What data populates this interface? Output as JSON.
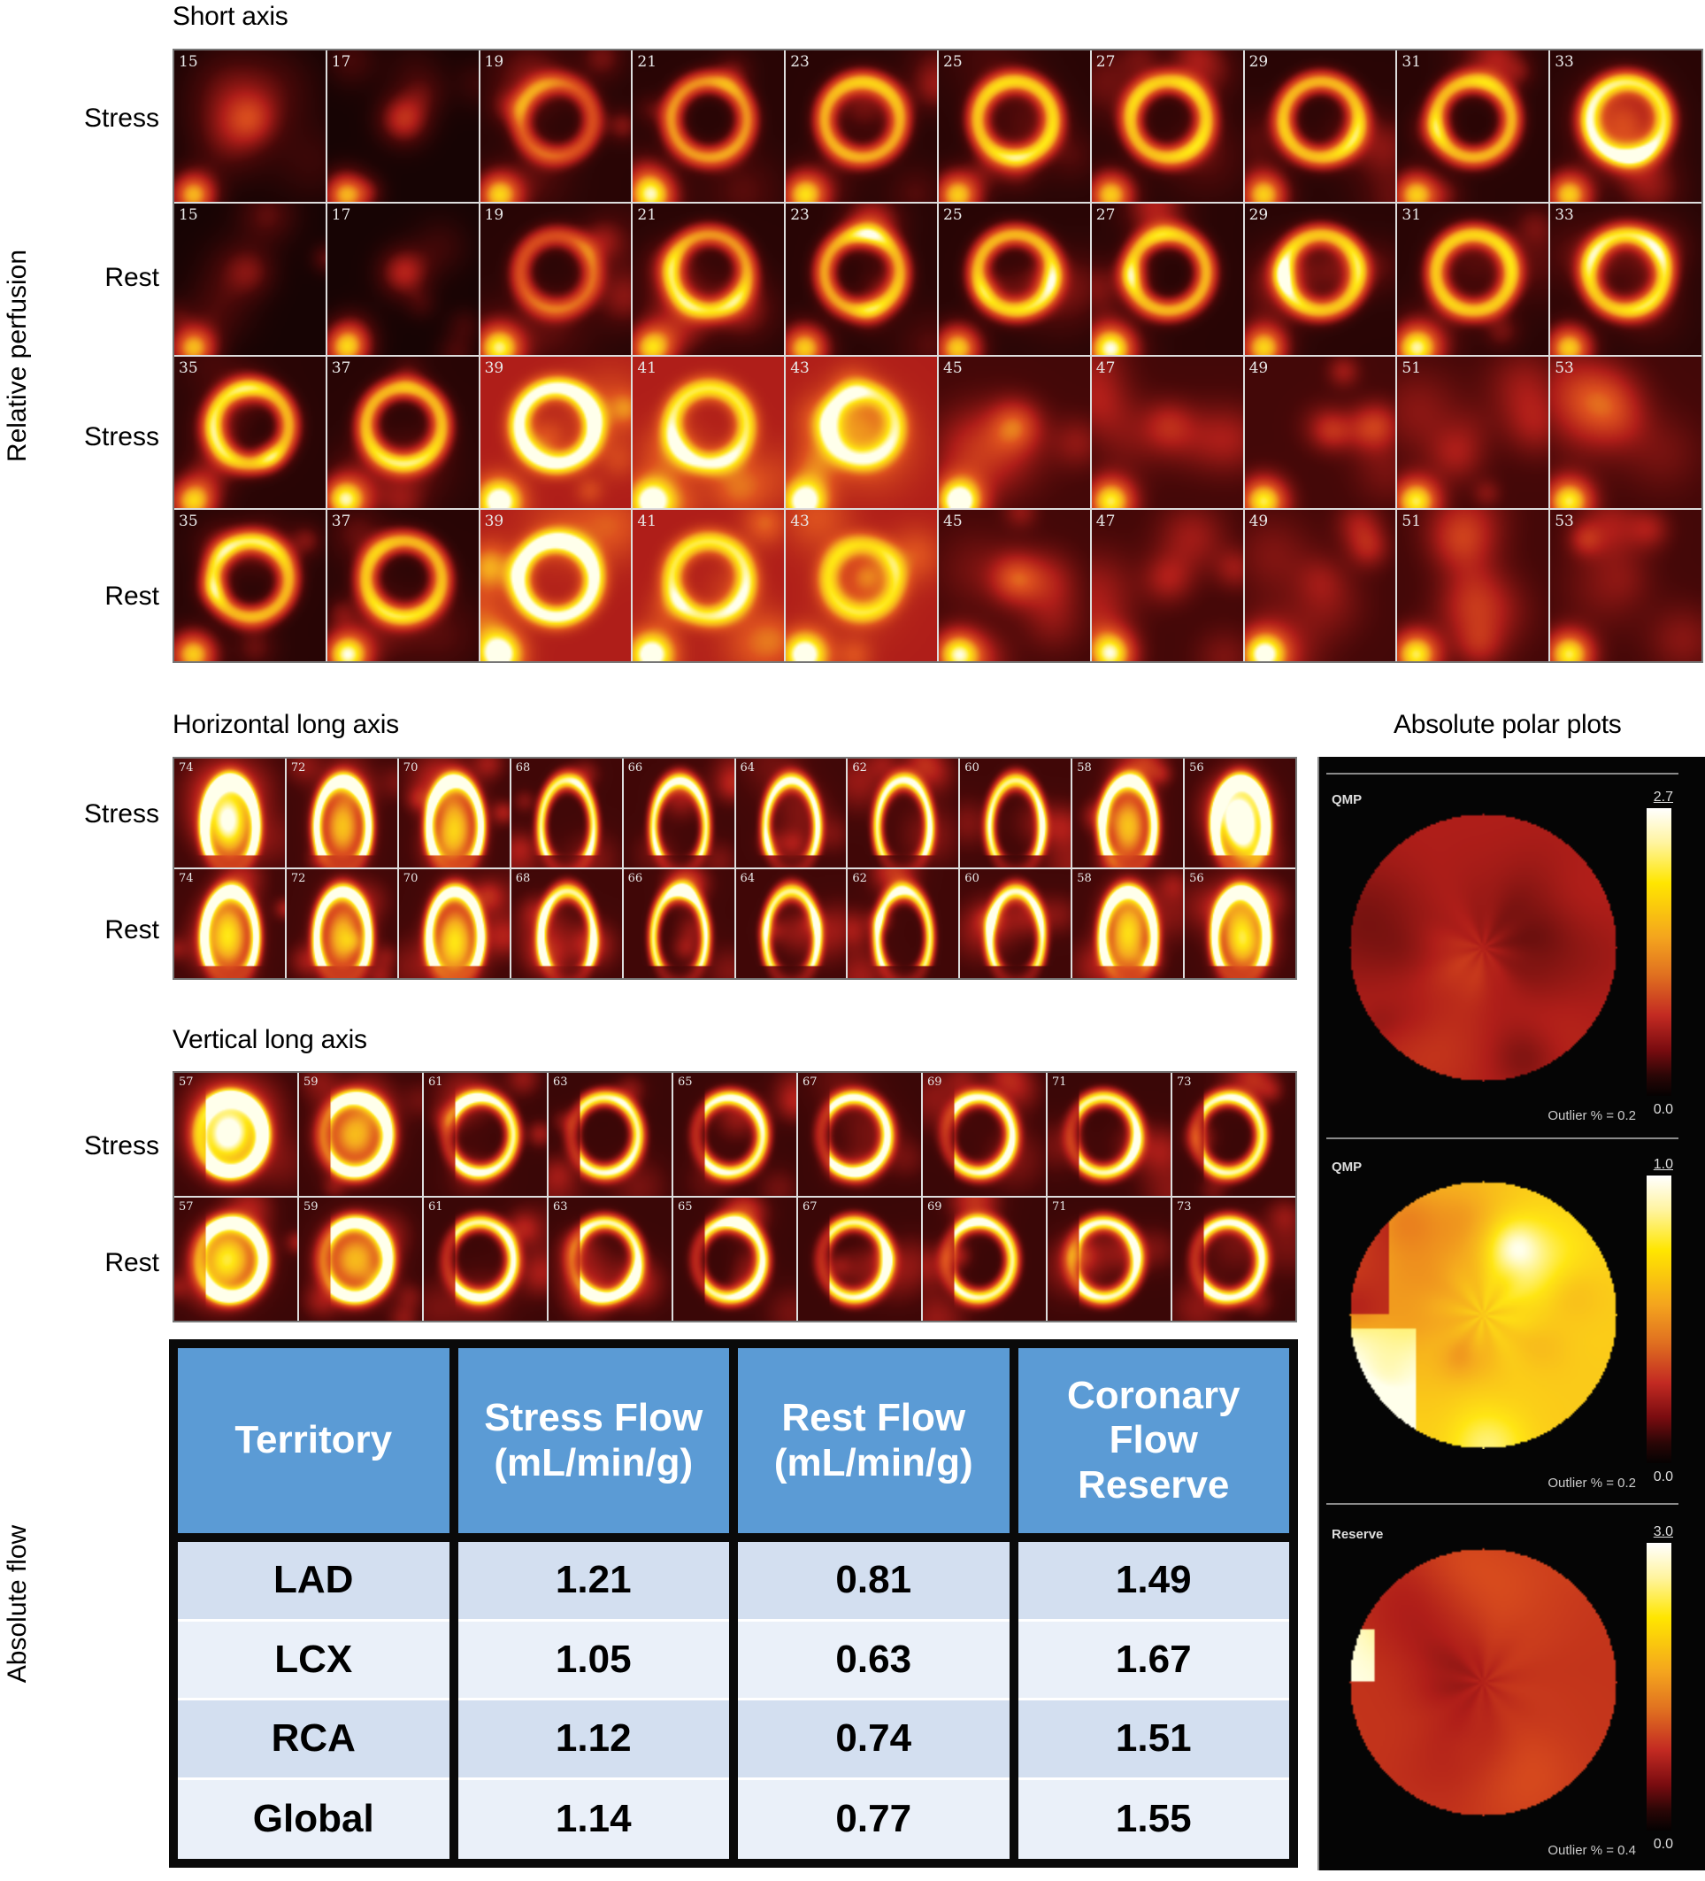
{
  "short_axis": {
    "title": "Short axis",
    "side_label": "Relative perfusion",
    "rows": [
      {
        "label": "Stress",
        "slices": [
          "15",
          "17",
          "19",
          "21",
          "23",
          "25",
          "27",
          "29",
          "31",
          "33"
        ],
        "intensity": [
          0.25,
          0.45,
          0.7,
          0.9,
          0.95,
          1,
          1,
          1,
          1,
          1
        ]
      },
      {
        "label": "Rest",
        "slices": [
          "15",
          "17",
          "19",
          "21",
          "23",
          "25",
          "27",
          "29",
          "31",
          "33"
        ],
        "intensity": [
          0.2,
          0.4,
          0.7,
          0.9,
          0.95,
          1,
          1,
          1,
          1,
          1
        ]
      },
      {
        "label": "Stress",
        "slices": [
          "35",
          "37",
          "39",
          "41",
          "43",
          "45",
          "47",
          "49",
          "51",
          "53"
        ],
        "intensity": [
          1,
          1,
          0.95,
          0.75,
          0.6,
          0.35,
          0.2,
          0.1,
          0.05,
          0.05
        ]
      },
      {
        "label": "Rest",
        "slices": [
          "35",
          "37",
          "39",
          "41",
          "43",
          "45",
          "47",
          "49",
          "51",
          "53"
        ],
        "intensity": [
          1,
          1,
          0.95,
          0.75,
          0.6,
          0.35,
          0.2,
          0.1,
          0.05,
          0.05
        ]
      }
    ]
  },
  "horizontal_long_axis": {
    "title": "Horizontal long axis",
    "rows": [
      {
        "label": "Stress",
        "slices": [
          "74",
          "72",
          "70",
          "68",
          "66",
          "64",
          "62",
          "60",
          "58",
          "56"
        ]
      },
      {
        "label": "Rest",
        "slices": [
          "74",
          "72",
          "70",
          "68",
          "66",
          "64",
          "62",
          "60",
          "58",
          "56"
        ]
      }
    ]
  },
  "vertical_long_axis": {
    "title": "Vertical long axis",
    "rows": [
      {
        "label": "Stress",
        "slices": [
          "57",
          "59",
          "61",
          "63",
          "65",
          "67",
          "69",
          "71",
          "73"
        ]
      },
      {
        "label": "Rest",
        "slices": [
          "57",
          "59",
          "61",
          "63",
          "65",
          "67",
          "69",
          "71",
          "73"
        ]
      }
    ]
  },
  "absolute_flow": {
    "side_label": "Absolute flow",
    "headers": [
      "Territory",
      "Stress Flow (mL/min/g)",
      "Rest Flow (mL/min/g)",
      "Coronary Flow Reserve"
    ],
    "header_lines": [
      [
        "Territory"
      ],
      [
        "Stress Flow",
        "(mL/min/g)"
      ],
      [
        "Rest Flow",
        "(mL/min/g)"
      ],
      [
        "Coronary",
        "Flow",
        "Reserve"
      ]
    ],
    "rows": [
      [
        "LAD",
        "1.21",
        "0.81",
        "1.49"
      ],
      [
        "LCX",
        "1.05",
        "0.63",
        "1.67"
      ],
      [
        "RCA",
        "1.12",
        "0.74",
        "1.51"
      ],
      [
        "Global",
        "1.14",
        "0.77",
        "1.55"
      ]
    ],
    "colors": {
      "header": "#5b9bd5",
      "row_odd": "#d3dff0",
      "row_even": "#eaf0f9"
    }
  },
  "polar_plots": {
    "title": "Absolute polar plots",
    "plots": [
      {
        "name": "QMP",
        "scale_max": "2.7",
        "scale_min": "0.0",
        "outlier": "Outlier % = 0.2",
        "mean_level": 0.42
      },
      {
        "name": "QMP",
        "scale_max": "1.0",
        "scale_min": "0.0",
        "outlier": "Outlier % = 0.2",
        "mean_level": 0.82
      },
      {
        "name": "Reserve",
        "scale_max": "3.0",
        "scale_min": "0.0",
        "outlier": "Outlier % = 0.4",
        "mean_level": 0.5
      }
    ]
  }
}
